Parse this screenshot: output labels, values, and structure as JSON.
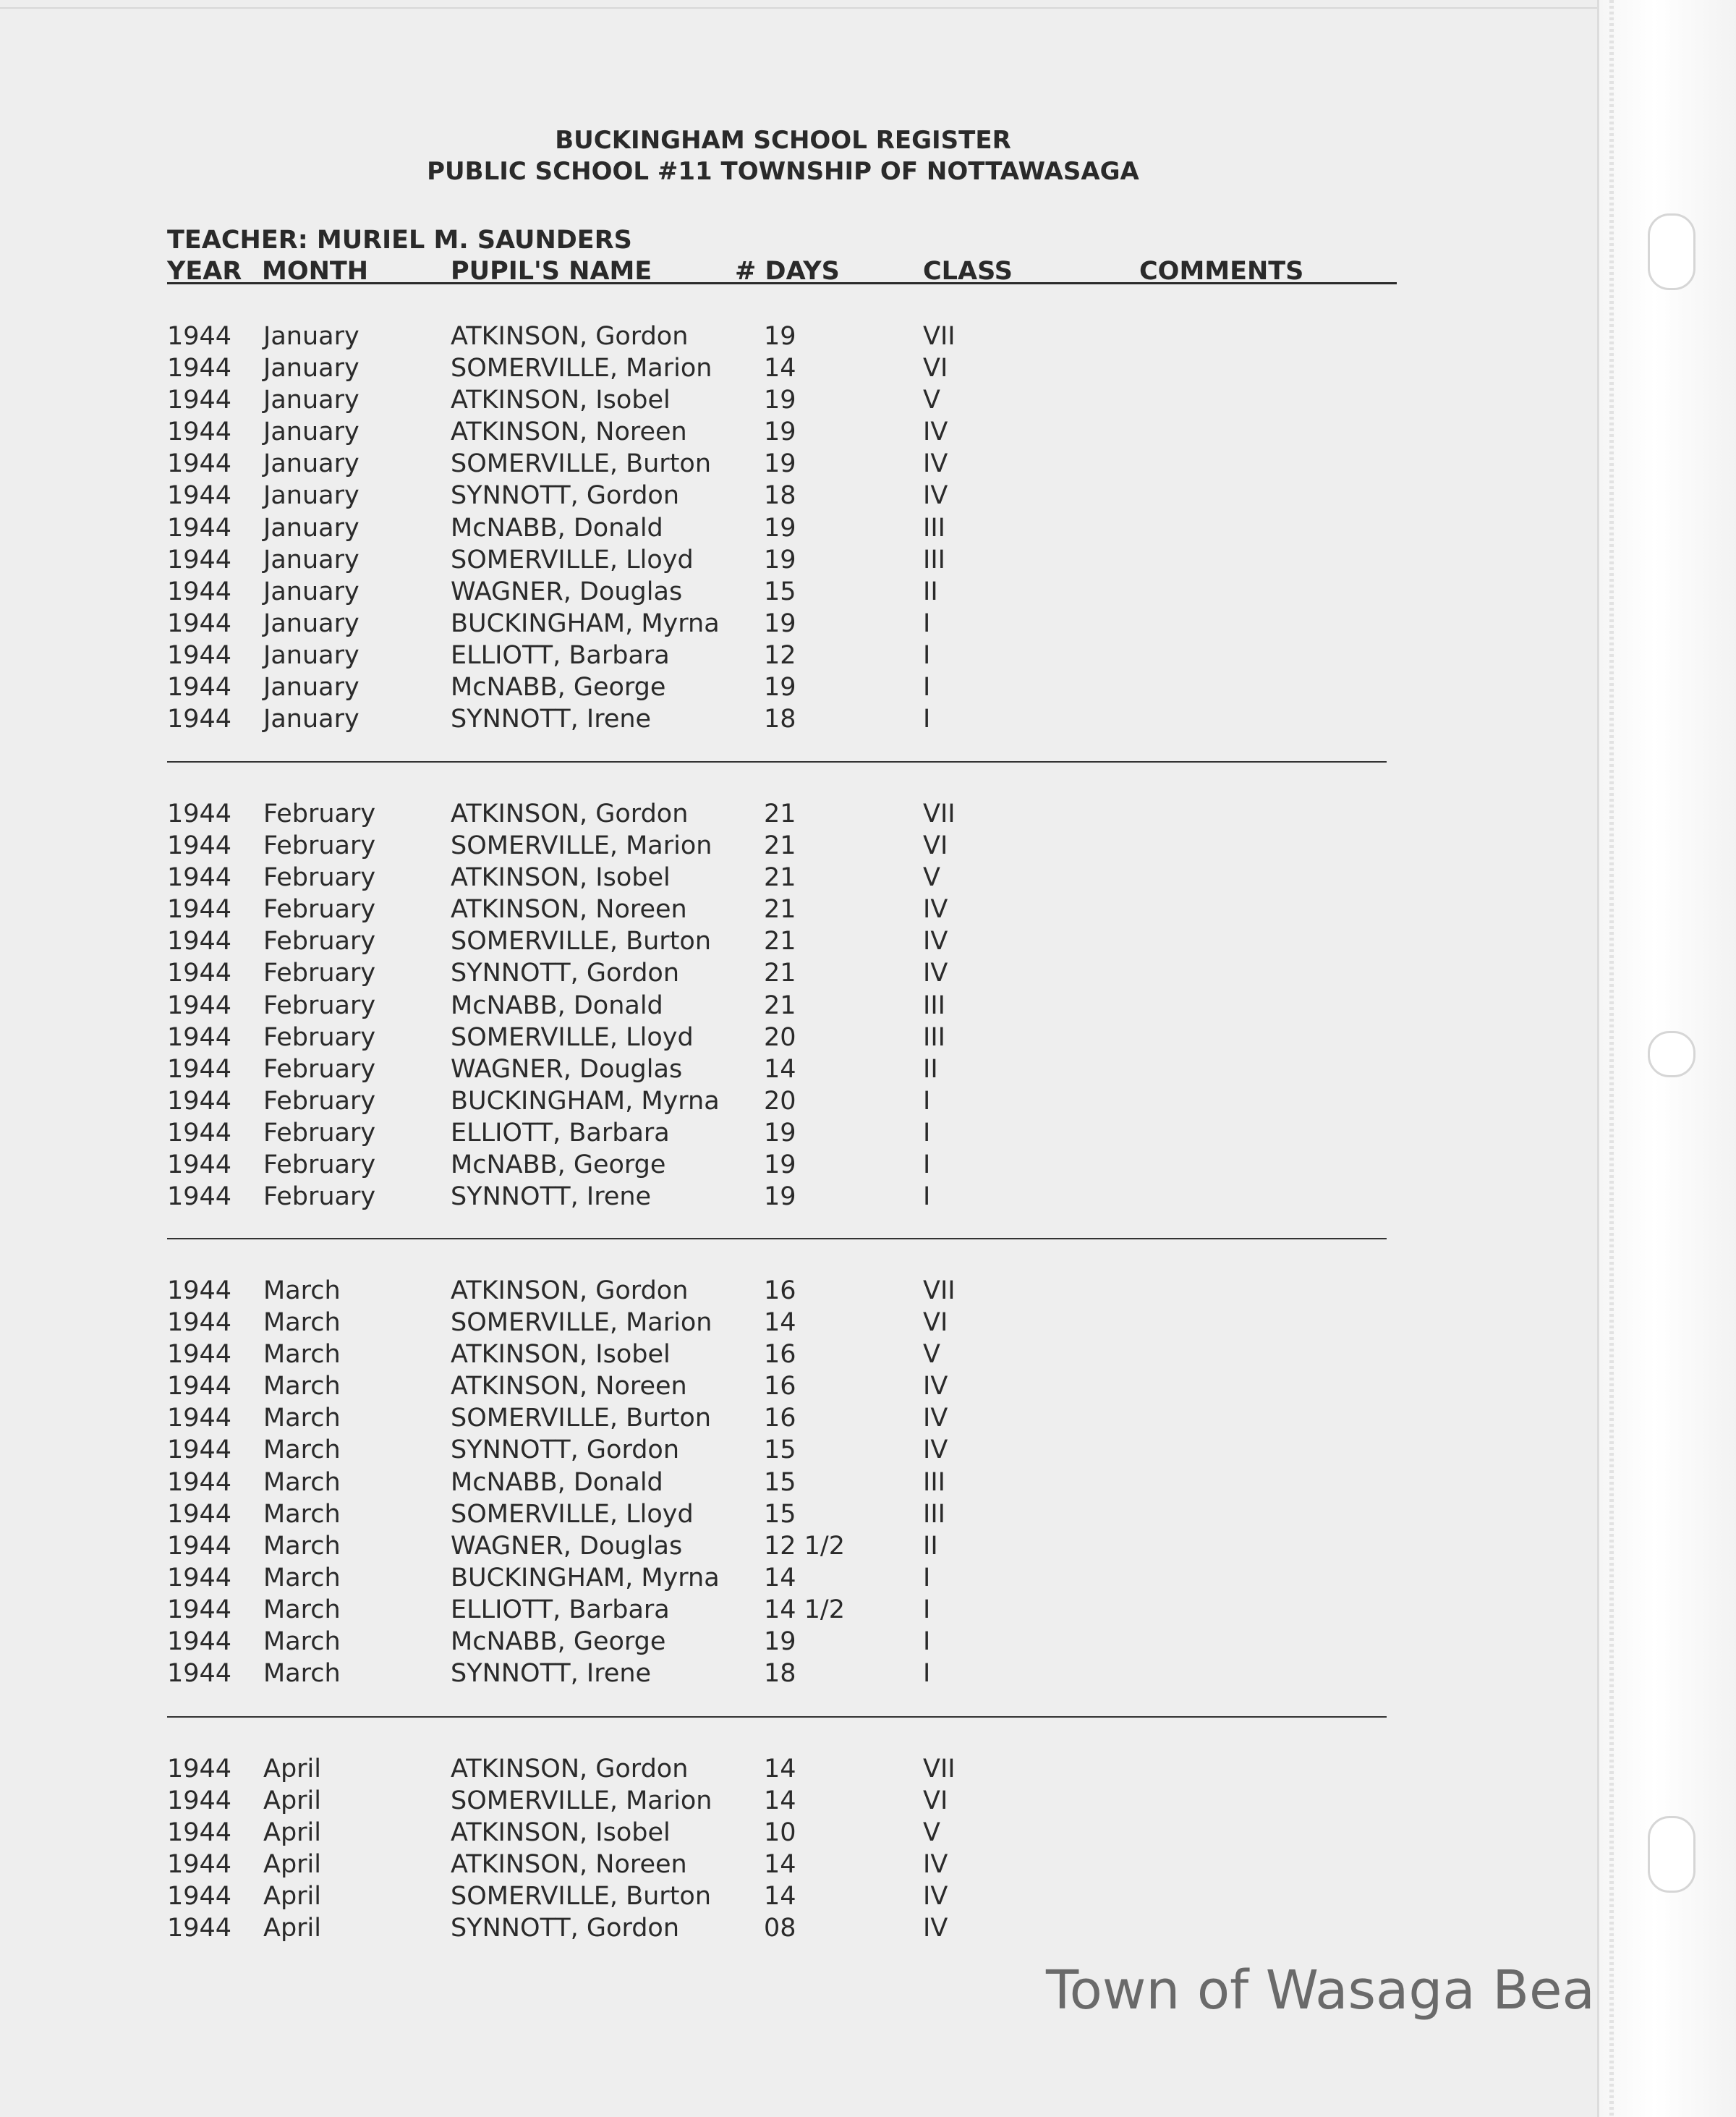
{
  "document": {
    "title_line1": "BUCKINGHAM SCHOOL REGISTER",
    "title_line2": "PUBLIC SCHOOL #11 TOWNSHIP OF NOTTAWASAGA",
    "teacher": "TEACHER: MURIEL M. SAUNDERS",
    "columns": [
      "YEAR",
      "MONTH",
      "PUPIL'S NAME",
      "# DAYS",
      "CLASS",
      "COMMENTS"
    ],
    "groups": [
      {
        "rows": [
          [
            "1944",
            "January",
            "ATKINSON, Gordon",
            "19",
            "VII"
          ],
          [
            "1944",
            "January",
            "SOMERVILLE, Marion",
            "14",
            "VI"
          ],
          [
            "1944",
            "January",
            "ATKINSON, Isobel",
            "19",
            "V"
          ],
          [
            "1944",
            "January",
            "ATKINSON, Noreen",
            "19",
            "IV"
          ],
          [
            "1944",
            "January",
            "SOMERVILLE, Burton",
            "19",
            "IV"
          ],
          [
            "1944",
            "January",
            "SYNNOTT, Gordon",
            "18",
            "IV"
          ],
          [
            "1944",
            "January",
            "McNABB, Donald",
            "19",
            "III"
          ],
          [
            "1944",
            "January",
            "SOMERVILLE, Lloyd",
            "19",
            "III"
          ],
          [
            "1944",
            "January",
            "WAGNER, Douglas",
            "15",
            "II"
          ],
          [
            "1944",
            "January",
            "BUCKINGHAM, Myrna",
            "19",
            "I"
          ],
          [
            "1944",
            "January",
            "ELLIOTT, Barbara",
            "12",
            "I"
          ],
          [
            "1944",
            "January",
            "McNABB, George",
            "19",
            "I"
          ],
          [
            "1944",
            "January",
            "SYNNOTT, Irene",
            "18",
            "I"
          ]
        ]
      },
      {
        "rows": [
          [
            "1944",
            "February",
            "ATKINSON, Gordon",
            "21",
            "VII"
          ],
          [
            "1944",
            "February",
            "SOMERVILLE, Marion",
            "21",
            "VI"
          ],
          [
            "1944",
            "February",
            "ATKINSON, Isobel",
            "21",
            "V"
          ],
          [
            "1944",
            "February",
            "ATKINSON, Noreen",
            "21",
            "IV"
          ],
          [
            "1944",
            "February",
            "SOMERVILLE, Burton",
            "21",
            "IV"
          ],
          [
            "1944",
            "February",
            "SYNNOTT, Gordon",
            "21",
            "IV"
          ],
          [
            "1944",
            "February",
            "McNABB, Donald",
            "21",
            "III"
          ],
          [
            "1944",
            "February",
            "SOMERVILLE, Lloyd",
            "20",
            "III"
          ],
          [
            "1944",
            "February",
            "WAGNER, Douglas",
            "14",
            "II"
          ],
          [
            "1944",
            "February",
            "BUCKINGHAM, Myrna",
            "20",
            "I"
          ],
          [
            "1944",
            "February",
            "ELLIOTT, Barbara",
            "19",
            "I"
          ],
          [
            "1944",
            "February",
            "McNABB, George",
            "19",
            "I"
          ],
          [
            "1944",
            "February",
            "SYNNOTT, Irene",
            "19",
            "I"
          ]
        ]
      },
      {
        "rows": [
          [
            "1944",
            "March",
            "ATKINSON, Gordon",
            "16",
            "VII"
          ],
          [
            "1944",
            "March",
            "SOMERVILLE, Marion",
            "14",
            "VI"
          ],
          [
            "1944",
            "March",
            "ATKINSON, Isobel",
            "16",
            "V"
          ],
          [
            "1944",
            "March",
            "ATKINSON, Noreen",
            "16",
            "IV"
          ],
          [
            "1944",
            "March",
            "SOMERVILLE, Burton",
            "16",
            "IV"
          ],
          [
            "1944",
            "March",
            "SYNNOTT, Gordon",
            "15",
            "IV"
          ],
          [
            "1944",
            "March",
            "McNABB, Donald",
            "15",
            "III"
          ],
          [
            "1944",
            "March",
            "SOMERVILLE, Lloyd",
            "15",
            "III"
          ],
          [
            "1944",
            "March",
            "WAGNER, Douglas",
            "12 1/2",
            "II"
          ],
          [
            "1944",
            "March",
            "BUCKINGHAM, Myrna",
            "14",
            "I"
          ],
          [
            "1944",
            "March",
            "ELLIOTT, Barbara",
            "14 1/2",
            "I"
          ],
          [
            "1944",
            "March",
            "McNABB, George",
            "19",
            "I"
          ],
          [
            "1944",
            "March",
            "SYNNOTT, Irene",
            "18",
            "I"
          ]
        ]
      },
      {
        "rows": [
          [
            "1944",
            "April",
            "ATKINSON, Gordon",
            "14",
            "VII"
          ],
          [
            "1944",
            "April",
            "SOMERVILLE, Marion",
            "14",
            "VI"
          ],
          [
            "1944",
            "April",
            "ATKINSON, Isobel",
            "10",
            "V"
          ],
          [
            "1944",
            "April",
            "ATKINSON, Noreen",
            "14",
            "IV"
          ],
          [
            "1944",
            "April",
            "SOMERVILLE, Burton",
            "14",
            "IV"
          ],
          [
            "1944",
            "April",
            "SYNNOTT, Gordon",
            "08",
            "IV"
          ]
        ]
      }
    ]
  },
  "watermark": "Town of Wasaga Beach"
}
